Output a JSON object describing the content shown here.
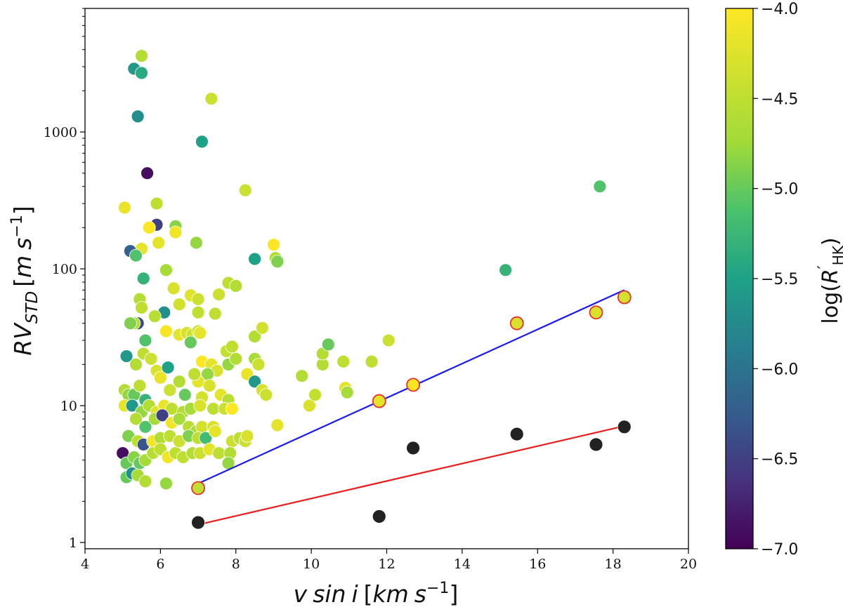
{
  "chart_data": {
    "type": "scatter",
    "xlabel": "v sin i [km s^{-1}]",
    "xlabel_parts": {
      "v": "v",
      "sin": "sin",
      "i": "i",
      "unit_open": "[",
      "km": "km",
      "s": "s",
      "exp": "−1",
      "unit_close": "]"
    },
    "ylabel": "RV_{STD} [m s^{-1}]",
    "ylabel_parts": {
      "rv": "RV",
      "sub": "STD",
      "unit_open": "[",
      "m": "m",
      "s": "s",
      "exp": "−1",
      "unit_close": "]"
    },
    "x_range": [
      4,
      20
    ],
    "y_range": [
      0.9,
      8000
    ],
    "y_scale": "log",
    "x_ticks": [
      4,
      6,
      8,
      10,
      12,
      14,
      16,
      18,
      20
    ],
    "x_tick_labels": [
      "4",
      "6",
      "8",
      "10",
      "12",
      "14",
      "16",
      "18",
      "20"
    ],
    "y_ticks": [
      1,
      10,
      100,
      1000
    ],
    "y_tick_labels": [
      "1",
      "10",
      "100",
      "1000"
    ],
    "colorbar": {
      "label": "log(R'_{HK})",
      "label_parts": {
        "log": "log(",
        "r": "R",
        "prime": "′",
        "sub": "HK",
        "close": ")"
      },
      "range": [
        -7.0,
        -4.0
      ],
      "ticks": [
        -4.0,
        -4.5,
        -5.0,
        -5.5,
        -6.0,
        -6.5,
        -7.0
      ],
      "tick_labels": [
        "−4.0",
        "−4.5",
        "−5.0",
        "−5.5",
        "−6.0",
        "−6.5",
        "−7.0"
      ],
      "colormap": "viridis"
    },
    "series": [
      {
        "name": "stars",
        "points": [
          {
            "x": 5.5,
            "y": 3600,
            "c": -4.6
          },
          {
            "x": 5.3,
            "y": 2900,
            "c": -5.6
          },
          {
            "x": 5.5,
            "y": 2700,
            "c": -5.4
          },
          {
            "x": 7.35,
            "y": 1750,
            "c": -4.4
          },
          {
            "x": 5.4,
            "y": 1300,
            "c": -5.7
          },
          {
            "x": 7.1,
            "y": 850,
            "c": -5.5
          },
          {
            "x": 5.65,
            "y": 500,
            "c": -6.9
          },
          {
            "x": 8.25,
            "y": 375,
            "c": -4.4
          },
          {
            "x": 5.05,
            "y": 280,
            "c": -4.15
          },
          {
            "x": 5.9,
            "y": 300,
            "c": -4.5
          },
          {
            "x": 5.9,
            "y": 210,
            "c": -6.5
          },
          {
            "x": 6.4,
            "y": 205,
            "c": -4.85
          },
          {
            "x": 5.7,
            "y": 200,
            "c": -4.0
          },
          {
            "x": 6.4,
            "y": 185,
            "c": -4.1
          },
          {
            "x": 5.5,
            "y": 140,
            "c": -4.2
          },
          {
            "x": 5.95,
            "y": 155,
            "c": -4.2
          },
          {
            "x": 6.95,
            "y": 155,
            "c": -4.8
          },
          {
            "x": 5.2,
            "y": 135,
            "c": -6.2
          },
          {
            "x": 5.35,
            "y": 125,
            "c": -5.1
          },
          {
            "x": 9.0,
            "y": 150,
            "c": -4.0
          },
          {
            "x": 9.05,
            "y": 120,
            "c": -4.6
          },
          {
            "x": 9.1,
            "y": 113,
            "c": -4.9
          },
          {
            "x": 8.5,
            "y": 118,
            "c": -5.5
          },
          {
            "x": 6.15,
            "y": 98,
            "c": -4.7
          },
          {
            "x": 5.55,
            "y": 85,
            "c": -5.3
          },
          {
            "x": 6.35,
            "y": 72,
            "c": -4.3
          },
          {
            "x": 6.8,
            "y": 64,
            "c": -4.25
          },
          {
            "x": 7.0,
            "y": 60,
            "c": -4.4
          },
          {
            "x": 7.8,
            "y": 79,
            "c": -4.5
          },
          {
            "x": 8.0,
            "y": 75,
            "c": -4.6
          },
          {
            "x": 7.55,
            "y": 65,
            "c": -4.4
          },
          {
            "x": 5.45,
            "y": 60,
            "c": -4.6
          },
          {
            "x": 6.5,
            "y": 55,
            "c": -4.35
          },
          {
            "x": 5.5,
            "y": 52,
            "c": -4.5
          },
          {
            "x": 6.1,
            "y": 48,
            "c": -5.7
          },
          {
            "x": 5.4,
            "y": 40,
            "c": -6.4
          },
          {
            "x": 5.3,
            "y": 40,
            "c": -4.6
          },
          {
            "x": 5.85,
            "y": 45,
            "c": -4.55
          },
          {
            "x": 7.45,
            "y": 47,
            "c": -4.5
          },
          {
            "x": 7.0,
            "y": 48,
            "c": -4.5
          },
          {
            "x": 6.15,
            "y": 35,
            "c": -4.05
          },
          {
            "x": 6.5,
            "y": 33,
            "c": -4.2
          },
          {
            "x": 6.7,
            "y": 34,
            "c": -4.3
          },
          {
            "x": 6.85,
            "y": 33,
            "c": -4.4
          },
          {
            "x": 7.0,
            "y": 35,
            "c": -4.4
          },
          {
            "x": 7.05,
            "y": 34,
            "c": -4.2
          },
          {
            "x": 6.8,
            "y": 29,
            "c": -5.0
          },
          {
            "x": 5.6,
            "y": 30,
            "c": -5.1
          },
          {
            "x": 5.2,
            "y": 40,
            "c": -4.9
          },
          {
            "x": 5.1,
            "y": 23,
            "c": -5.6
          },
          {
            "x": 5.35,
            "y": 20,
            "c": -4.6
          },
          {
            "x": 5.55,
            "y": 24,
            "c": -4.5
          },
          {
            "x": 5.75,
            "y": 22,
            "c": -4.4
          },
          {
            "x": 5.9,
            "y": 18,
            "c": -4.3
          },
          {
            "x": 6.0,
            "y": 16,
            "c": -4.15
          },
          {
            "x": 6.2,
            "y": 19,
            "c": -5.5
          },
          {
            "x": 7.75,
            "y": 25,
            "c": -4.45
          },
          {
            "x": 7.9,
            "y": 27,
            "c": -4.5
          },
          {
            "x": 8.5,
            "y": 32,
            "c": -4.6
          },
          {
            "x": 8.7,
            "y": 37,
            "c": -4.35
          },
          {
            "x": 7.1,
            "y": 21,
            "c": -4.0
          },
          {
            "x": 7.35,
            "y": 20,
            "c": -4.2
          },
          {
            "x": 7.5,
            "y": 18,
            "c": -4.3
          },
          {
            "x": 7.25,
            "y": 17,
            "c": -4.8
          },
          {
            "x": 7.8,
            "y": 20,
            "c": -4.8
          },
          {
            "x": 8.0,
            "y": 22,
            "c": -4.6
          },
          {
            "x": 8.5,
            "y": 22,
            "c": -4.7
          },
          {
            "x": 8.6,
            "y": 20,
            "c": -4.4
          },
          {
            "x": 8.3,
            "y": 17,
            "c": -4.15
          },
          {
            "x": 8.5,
            "y": 15,
            "c": -5.6
          },
          {
            "x": 8.7,
            "y": 13,
            "c": -4.3
          },
          {
            "x": 8.8,
            "y": 12,
            "c": -4.4
          },
          {
            "x": 7.0,
            "y": 15,
            "c": -4.2
          },
          {
            "x": 6.9,
            "y": 17,
            "c": -4.5
          },
          {
            "x": 6.5,
            "y": 15,
            "c": -4.6
          },
          {
            "x": 6.25,
            "y": 13,
            "c": -4.4
          },
          {
            "x": 6.65,
            "y": 12,
            "c": -5.0
          },
          {
            "x": 7.3,
            "y": 14,
            "c": -4.3
          },
          {
            "x": 7.6,
            "y": 12,
            "c": -4.2
          },
          {
            "x": 7.8,
            "y": 11,
            "c": -4.55
          },
          {
            "x": 7.1,
            "y": 11.5,
            "c": -4.35
          },
          {
            "x": 5.05,
            "y": 13,
            "c": -4.6
          },
          {
            "x": 5.15,
            "y": 12,
            "c": -4.8
          },
          {
            "x": 5.3,
            "y": 12,
            "c": -5.0
          },
          {
            "x": 5.45,
            "y": 14,
            "c": -4.5
          },
          {
            "x": 5.6,
            "y": 11,
            "c": -5.3
          },
          {
            "x": 5.05,
            "y": 10,
            "c": -4.2
          },
          {
            "x": 5.25,
            "y": 10,
            "c": -5.6
          },
          {
            "x": 5.5,
            "y": 9,
            "c": -4.8
          },
          {
            "x": 5.7,
            "y": 10,
            "c": -4.6
          },
          {
            "x": 5.9,
            "y": 9,
            "c": -4.25
          },
          {
            "x": 6.1,
            "y": 10,
            "c": -4.15
          },
          {
            "x": 6.3,
            "y": 9.5,
            "c": -4.5
          },
          {
            "x": 6.6,
            "y": 9,
            "c": -4.6
          },
          {
            "x": 6.8,
            "y": 9.5,
            "c": -4.7
          },
          {
            "x": 7.05,
            "y": 10,
            "c": -4.3
          },
          {
            "x": 7.4,
            "y": 9.5,
            "c": -4.5
          },
          {
            "x": 7.7,
            "y": 9.5,
            "c": -4.4
          },
          {
            "x": 7.9,
            "y": 9.5,
            "c": -4.0
          },
          {
            "x": 5.35,
            "y": 8,
            "c": -4.6
          },
          {
            "x": 5.6,
            "y": 7,
            "c": -5.1
          },
          {
            "x": 5.85,
            "y": 8,
            "c": -4.7
          },
          {
            "x": 6.05,
            "y": 8.5,
            "c": -6.5
          },
          {
            "x": 6.3,
            "y": 7.5,
            "c": -4.1
          },
          {
            "x": 6.5,
            "y": 8,
            "c": -4.7
          },
          {
            "x": 6.75,
            "y": 7,
            "c": -4.55
          },
          {
            "x": 6.95,
            "y": 6.5,
            "c": -4.65
          },
          {
            "x": 7.1,
            "y": 7,
            "c": -4.35
          },
          {
            "x": 7.4,
            "y": 7,
            "c": -4.3
          },
          {
            "x": 5.15,
            "y": 6,
            "c": -4.9
          },
          {
            "x": 5.4,
            "y": 5.5,
            "c": -4.5
          },
          {
            "x": 5.55,
            "y": 5.2,
            "c": -6.3
          },
          {
            "x": 5.8,
            "y": 5.5,
            "c": -4.1
          },
          {
            "x": 6.0,
            "y": 5.8,
            "c": -4.6
          },
          {
            "x": 6.25,
            "y": 6,
            "c": -4.5
          },
          {
            "x": 6.5,
            "y": 5.5,
            "c": -4.4
          },
          {
            "x": 6.75,
            "y": 6,
            "c": -4.9
          },
          {
            "x": 7.0,
            "y": 5.8,
            "c": -4.5
          },
          {
            "x": 7.2,
            "y": 5.8,
            "c": -5.2
          },
          {
            "x": 7.45,
            "y": 6.5,
            "c": -4.2
          },
          {
            "x": 7.9,
            "y": 5.5,
            "c": -4.4
          },
          {
            "x": 8.1,
            "y": 5.8,
            "c": -4.5
          },
          {
            "x": 8.25,
            "y": 5.5,
            "c": -4.4
          },
          {
            "x": 8.3,
            "y": 6,
            "c": -4.3
          },
          {
            "x": 5.0,
            "y": 4.5,
            "c": -6.9
          },
          {
            "x": 5.1,
            "y": 3.8,
            "c": -5.0
          },
          {
            "x": 5.3,
            "y": 4.2,
            "c": -4.85
          },
          {
            "x": 5.45,
            "y": 3.8,
            "c": -5.0
          },
          {
            "x": 5.6,
            "y": 4,
            "c": -4.7
          },
          {
            "x": 5.8,
            "y": 4.5,
            "c": -4.55
          },
          {
            "x": 6.0,
            "y": 4.8,
            "c": -4.5
          },
          {
            "x": 6.2,
            "y": 4.2,
            "c": -4.1
          },
          {
            "x": 6.4,
            "y": 4.5,
            "c": -4.5
          },
          {
            "x": 6.6,
            "y": 4.2,
            "c": -4.5
          },
          {
            "x": 6.85,
            "y": 4.5,
            "c": -4.6
          },
          {
            "x": 7.05,
            "y": 4.5,
            "c": -4.4
          },
          {
            "x": 7.3,
            "y": 4.8,
            "c": -4.2
          },
          {
            "x": 7.55,
            "y": 4.5,
            "c": -4.5
          },
          {
            "x": 7.85,
            "y": 4.5,
            "c": -4.6
          },
          {
            "x": 7.8,
            "y": 3.8,
            "c": -4.8
          },
          {
            "x": 5.1,
            "y": 3.0,
            "c": -5.0
          },
          {
            "x": 5.25,
            "y": 3.2,
            "c": -5.7
          },
          {
            "x": 5.4,
            "y": 3.1,
            "c": -4.7
          },
          {
            "x": 5.6,
            "y": 2.8,
            "c": -4.6
          },
          {
            "x": 6.15,
            "y": 2.7,
            "c": -4.8
          },
          {
            "x": 9.1,
            "y": 7.2,
            "c": -4.2
          },
          {
            "x": 9.75,
            "y": 16.5,
            "c": -4.6
          },
          {
            "x": 9.95,
            "y": 10,
            "c": -4.3
          },
          {
            "x": 10.1,
            "y": 12,
            "c": -4.45
          },
          {
            "x": 10.3,
            "y": 20,
            "c": -4.6
          },
          {
            "x": 10.3,
            "y": 24,
            "c": -4.6
          },
          {
            "x": 10.45,
            "y": 28,
            "c": -5.0
          },
          {
            "x": 10.85,
            "y": 21,
            "c": -4.5
          },
          {
            "x": 10.9,
            "y": 13.5,
            "c": -4.2
          },
          {
            "x": 10.95,
            "y": 12.5,
            "c": -4.7
          },
          {
            "x": 11.6,
            "y": 21,
            "c": -4.5
          },
          {
            "x": 12.05,
            "y": 30,
            "c": -4.4
          },
          {
            "x": 15.15,
            "y": 98,
            "c": -5.3
          },
          {
            "x": 17.65,
            "y": 400,
            "c": -5.1
          }
        ]
      },
      {
        "name": "highlighted",
        "points": [
          {
            "x": 7.0,
            "y": 2.5,
            "c": -4.5
          },
          {
            "x": 11.8,
            "y": 10.8,
            "c": -4.2
          },
          {
            "x": 12.7,
            "y": 14.2,
            "c": -4.05
          },
          {
            "x": 15.45,
            "y": 40,
            "c": -4.3
          },
          {
            "x": 17.55,
            "y": 48,
            "c": -4.3
          },
          {
            "x": 18.3,
            "y": 62,
            "c": -4.35
          }
        ],
        "edgecolor": "#e8322a"
      },
      {
        "name": "black",
        "points": [
          {
            "x": 7.0,
            "y": 1.4
          },
          {
            "x": 11.8,
            "y": 1.55
          },
          {
            "x": 12.7,
            "y": 4.9
          },
          {
            "x": 15.45,
            "y": 6.2
          },
          {
            "x": 17.55,
            "y": 5.2
          },
          {
            "x": 18.3,
            "y": 7.0
          }
        ],
        "color": "#222222"
      }
    ],
    "fit_lines": [
      {
        "name": "blue fit",
        "color": "#1a1aff",
        "x": [
          7.0,
          18.3
        ],
        "y": [
          2.7,
          70
        ]
      },
      {
        "name": "red fit",
        "color": "#ee1c1c",
        "x": [
          7.0,
          18.3
        ],
        "y": [
          1.35,
          7.1
        ]
      }
    ]
  }
}
